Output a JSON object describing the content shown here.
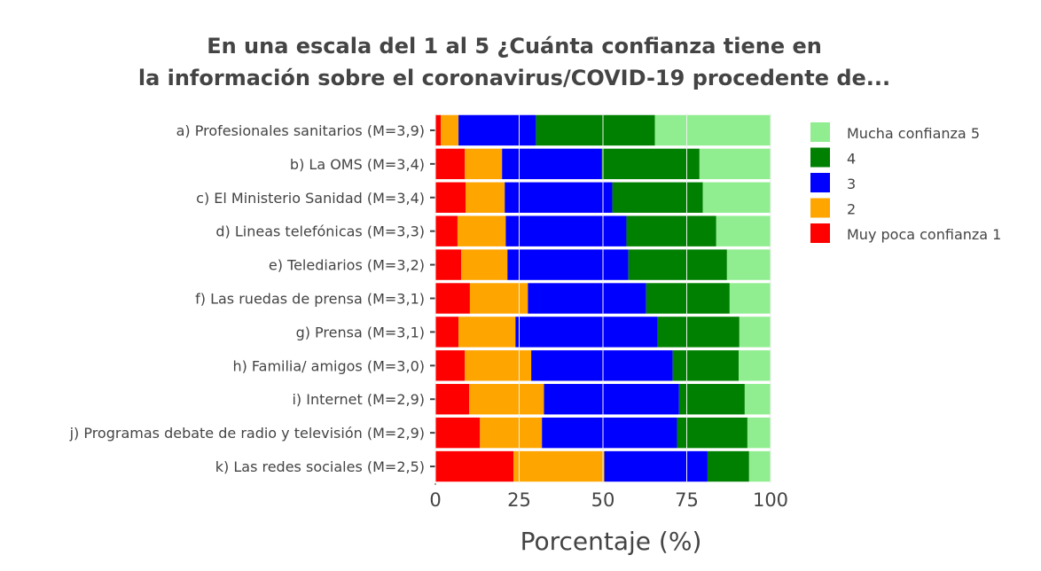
{
  "chart_data": {
    "type": "bar",
    "orientation": "horizontal",
    "stacked": true,
    "title_lines": [
      "En una escala del 1 al 5 ¿Cuánta confianza tiene en",
      "la información sobre el coronavirus/COVID-19 procedente de..."
    ],
    "xlabel": "Porcentaje (%)",
    "ylabel": "",
    "xlim": [
      0,
      100
    ],
    "xticks": [
      0,
      25,
      50,
      75,
      100
    ],
    "legend_position": "right",
    "categories": [
      "a) Profesionales sanitarios (M=3,9)",
      "b) La OMS (M=3,4)",
      "c) El Ministerio Sanidad (M=3,4)",
      "d) Lineas telefónicas (M=3,3)",
      "e) Telediarios (M=3,2)",
      "f) Las ruedas de prensa (M=3,1)",
      "g) Prensa (M=3,1)",
      "h) Familia/ amigos (M=3,0)",
      "i) Internet (M=2,9)",
      "j) Programas debate de radio y televisión (M=2,9)",
      "k) Las redes sociales (M=2,5)"
    ],
    "series": [
      {
        "name": "Muy poca confianza 1",
        "color": "#ff0000",
        "values": [
          1.6,
          8.8,
          9.0,
          6.6,
          7.7,
          10.3,
          6.9,
          8.8,
          10.1,
          13.3,
          23.3
        ]
      },
      {
        "name": "2",
        "color": "#ffa500",
        "values": [
          5.3,
          11.1,
          11.7,
          14.4,
          13.8,
          17.3,
          17.0,
          19.8,
          22.3,
          18.5,
          27.1
        ]
      },
      {
        "name": "3",
        "color": "#0000ff",
        "values": [
          23.1,
          29.7,
          32.1,
          36.0,
          36.1,
          35.3,
          42.4,
          42.2,
          40.3,
          40.3,
          30.8
        ]
      },
      {
        "name": "4",
        "color": "#008000",
        "values": [
          35.5,
          29.2,
          27.0,
          26.8,
          29.4,
          24.9,
          24.4,
          19.7,
          19.6,
          21.0,
          12.4
        ]
      },
      {
        "name": "Mucha confianza 5",
        "color": "#90ee90",
        "values": [
          34.5,
          21.2,
          20.2,
          16.2,
          13.0,
          12.2,
          9.3,
          9.5,
          7.7,
          6.9,
          6.4
        ]
      }
    ],
    "legend_order": [
      4,
      3,
      2,
      1,
      0
    ]
  }
}
